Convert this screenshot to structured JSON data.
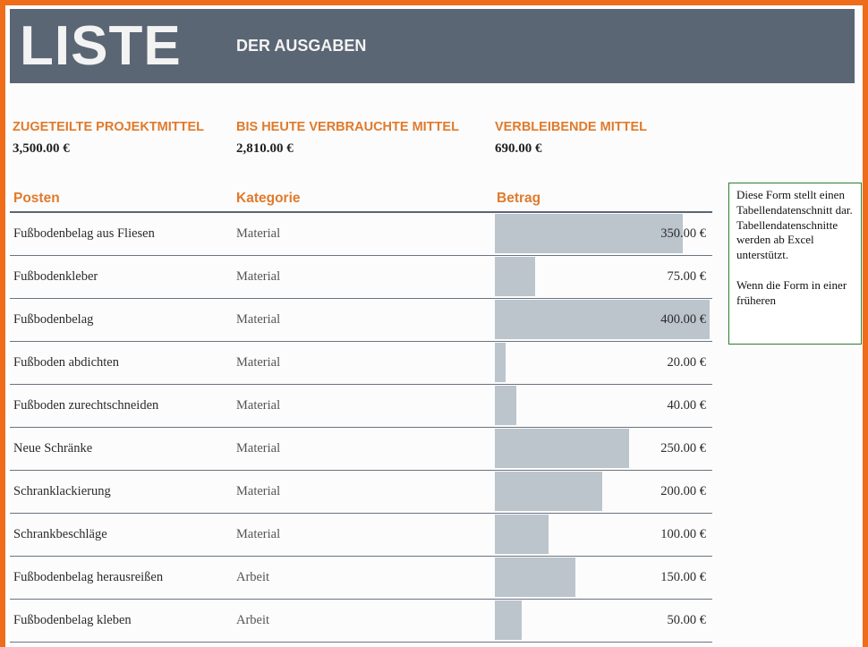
{
  "banner": {
    "title": "LISTE",
    "subtitle": "DER AUSGABEN"
  },
  "summary": [
    {
      "label": "ZUGETEILTE PROJEKTMITTEL",
      "value": "3,500.00 €"
    },
    {
      "label": "BIS HEUTE VERBRAUCHTE MITTEL",
      "value": "2,810.00 €"
    },
    {
      "label": "VERBLEIBENDE MITTEL",
      "value": "690.00 €"
    }
  ],
  "table": {
    "columns": [
      "Posten",
      "Kategorie",
      "Betrag"
    ],
    "bar_max_amount": 400,
    "rows": [
      {
        "item": "Fußbodenbelag aus Fliesen",
        "category": "Material",
        "amount_value": 350,
        "amount": "350.00 €"
      },
      {
        "item": "Fußbodenkleber",
        "category": "Material",
        "amount_value": 75,
        "amount": "75.00 €"
      },
      {
        "item": "Fußbodenbelag",
        "category": "Material",
        "amount_value": 400,
        "amount": "400.00 €"
      },
      {
        "item": "Fußboden abdichten",
        "category": "Material",
        "amount_value": 20,
        "amount": "20.00 €"
      },
      {
        "item": "Fußboden zurechtschneiden",
        "category": "Material",
        "amount_value": 40,
        "amount": "40.00 €"
      },
      {
        "item": "Neue Schränke",
        "category": "Material",
        "amount_value": 250,
        "amount": "250.00 €"
      },
      {
        "item": "Schranklackierung",
        "category": "Material",
        "amount_value": 200,
        "amount": "200.00 €"
      },
      {
        "item": "Schrankbeschläge",
        "category": "Material",
        "amount_value": 100,
        "amount": "100.00 €"
      },
      {
        "item": "Fußbodenbelag herausreißen",
        "category": "Arbeit",
        "amount_value": 150,
        "amount": "150.00 €"
      },
      {
        "item": "Fußbodenbelag kleben",
        "category": "Arbeit",
        "amount_value": 50,
        "amount": "50.00 €"
      }
    ]
  },
  "note": {
    "text_1": "Diese Form stellt einen Tabellendatenschnitt dar. Tabellendatenschnitte werden ab Excel unterstützt.",
    "text_2": "Wenn die Form in einer früheren"
  },
  "colors": {
    "frame": "#ef6c1a",
    "banner": "#5b6674",
    "accent": "#e07a2c",
    "bar": "#bcc4cc",
    "note_border": "#2e7d32"
  }
}
